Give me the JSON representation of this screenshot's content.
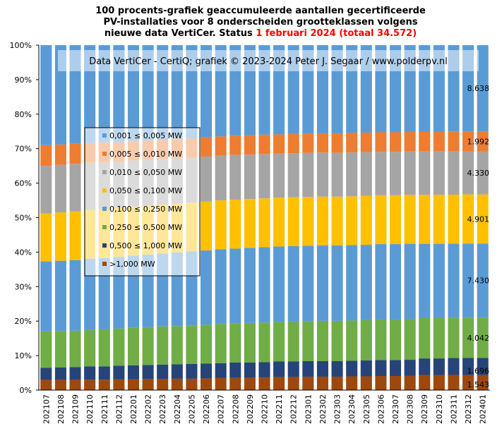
{
  "colors": {
    "c0": "#5b9bd5",
    "c1": "#ed7d31",
    "c2": "#a5a5a5",
    "c3": "#ffc000",
    "c4": "#5b9bd5",
    "c5": "#70ad47",
    "c6": "#264478",
    "c7": "#9e480e"
  },
  "chart_data": {
    "type": "bar",
    "stacked": "percent",
    "title_lines": [
      "100 procents-grafiek geaccumuleerde aantallen gecertificeerde",
      "PV-installaties voor 8 onderscheiden grootteklassen volgens"
    ],
    "title_line3_prefix": "nieuwe data VertiCer. Status",
    "title_line3_highlight": "1 februari  2024 (totaal 34.572)",
    "banner": "Data VertiCer - CertiQ; grafiek © 2023-2024  Peter J. Segaar / www.polderpv.nl",
    "ylim": [
      0,
      100
    ],
    "yticks": [
      "0%",
      "10%",
      "20%",
      "30%",
      "40%",
      "50%",
      "60%",
      "70%",
      "80%",
      "90%",
      "100%"
    ],
    "categories": [
      "202107",
      "202108",
      "202109",
      "202110",
      "202111",
      "202112",
      "202201",
      "202202",
      "202203",
      "202204",
      "202205",
      "202206",
      "202207",
      "202208",
      "202209",
      "202210",
      "202211",
      "202212",
      "202301",
      "202302",
      "202303",
      "202304",
      "202305",
      "202306",
      "202307",
      "202308",
      "202309",
      "202310",
      "202311",
      "202312",
      "202401"
    ],
    "series_labels": [
      "0,001 ≤  0,005 MW",
      "0,005 ≤  0,010 MW",
      "0,010 ≤  0,050 MW",
      "0,050 ≤  0,100 MW",
      "0,100 ≤  0,250 MW",
      "0,250 ≤  0,500 MW",
      "0,500 ≤  1,000 MW",
      ">1,000 MW"
    ],
    "series_values": [
      [
        29.0,
        28.8,
        28.6,
        28.4,
        28.3,
        28.2,
        27.9,
        27.7,
        27.5,
        27.3,
        27.1,
        26.8,
        26.5,
        26.3,
        26.2,
        26.0,
        25.9,
        25.8,
        25.7,
        25.6,
        25.6,
        25.5,
        25.4,
        25.3,
        25.3,
        25.2,
        25.2,
        25.1,
        25.0,
        25.0,
        25.0
      ],
      [
        6.0,
        5.9,
        5.8,
        5.7,
        5.7,
        5.6,
        5.6,
        5.6,
        5.6,
        5.6,
        5.6,
        5.6,
        5.6,
        5.6,
        5.6,
        5.6,
        5.6,
        5.6,
        5.6,
        5.6,
        5.7,
        5.7,
        5.7,
        5.7,
        5.7,
        5.7,
        5.7,
        5.8,
        5.8,
        5.8,
        5.8
      ],
      [
        13.8,
        13.8,
        13.8,
        13.7,
        13.6,
        13.5,
        13.4,
        13.3,
        13.3,
        13.2,
        13.1,
        13.1,
        13.0,
        13.0,
        12.9,
        12.9,
        12.8,
        12.8,
        12.8,
        12.8,
        12.7,
        12.7,
        12.7,
        12.6,
        12.6,
        12.6,
        12.6,
        12.6,
        12.6,
        12.5,
        12.5
      ],
      [
        13.9,
        14.0,
        14.1,
        14.1,
        14.2,
        14.2,
        14.2,
        14.2,
        14.2,
        14.2,
        14.2,
        14.2,
        14.2,
        14.2,
        14.2,
        14.2,
        14.2,
        14.2,
        14.2,
        14.2,
        14.2,
        14.2,
        14.2,
        14.2,
        14.2,
        14.2,
        14.2,
        14.2,
        14.2,
        14.2,
        14.2
      ],
      [
        20.3,
        20.4,
        20.5,
        20.6,
        20.7,
        20.8,
        21.0,
        21.1,
        21.2,
        21.4,
        21.5,
        21.6,
        21.7,
        21.7,
        21.8,
        21.9,
        21.9,
        21.9,
        21.9,
        21.9,
        21.9,
        21.9,
        21.9,
        21.9,
        21.9,
        21.9,
        21.5,
        21.5,
        21.5,
        21.5,
        21.5
      ],
      [
        10.5,
        10.5,
        10.5,
        10.6,
        10.7,
        10.8,
        10.9,
        11.0,
        11.1,
        11.1,
        11.2,
        11.3,
        11.4,
        11.4,
        11.5,
        11.5,
        11.5,
        11.6,
        11.6,
        11.7,
        11.7,
        11.7,
        11.7,
        11.8,
        11.8,
        11.8,
        11.8,
        11.8,
        11.7,
        11.7,
        11.7
      ],
      [
        3.6,
        3.7,
        3.8,
        3.9,
        3.9,
        4.0,
        4.1,
        4.1,
        4.2,
        4.2,
        4.3,
        4.3,
        4.3,
        4.4,
        4.4,
        4.4,
        4.5,
        4.5,
        4.5,
        4.5,
        4.5,
        4.5,
        4.6,
        4.6,
        4.6,
        4.6,
        4.8,
        4.8,
        4.9,
        4.9,
        4.9
      ],
      [
        2.9,
        2.9,
        2.9,
        3.0,
        3.0,
        3.1,
        3.1,
        3.2,
        3.2,
        3.3,
        3.3,
        3.4,
        3.5,
        3.6,
        3.6,
        3.7,
        3.8,
        3.8,
        3.9,
        3.9,
        3.9,
        4.0,
        4.0,
        4.1,
        4.1,
        4.2,
        4.4,
        4.4,
        4.4,
        4.4,
        4.4
      ]
    ],
    "end_labels": [
      "8.638",
      "1.992",
      "4.330",
      "4.901",
      "7.430",
      "4.042",
      "1.696",
      "1.543"
    ]
  }
}
